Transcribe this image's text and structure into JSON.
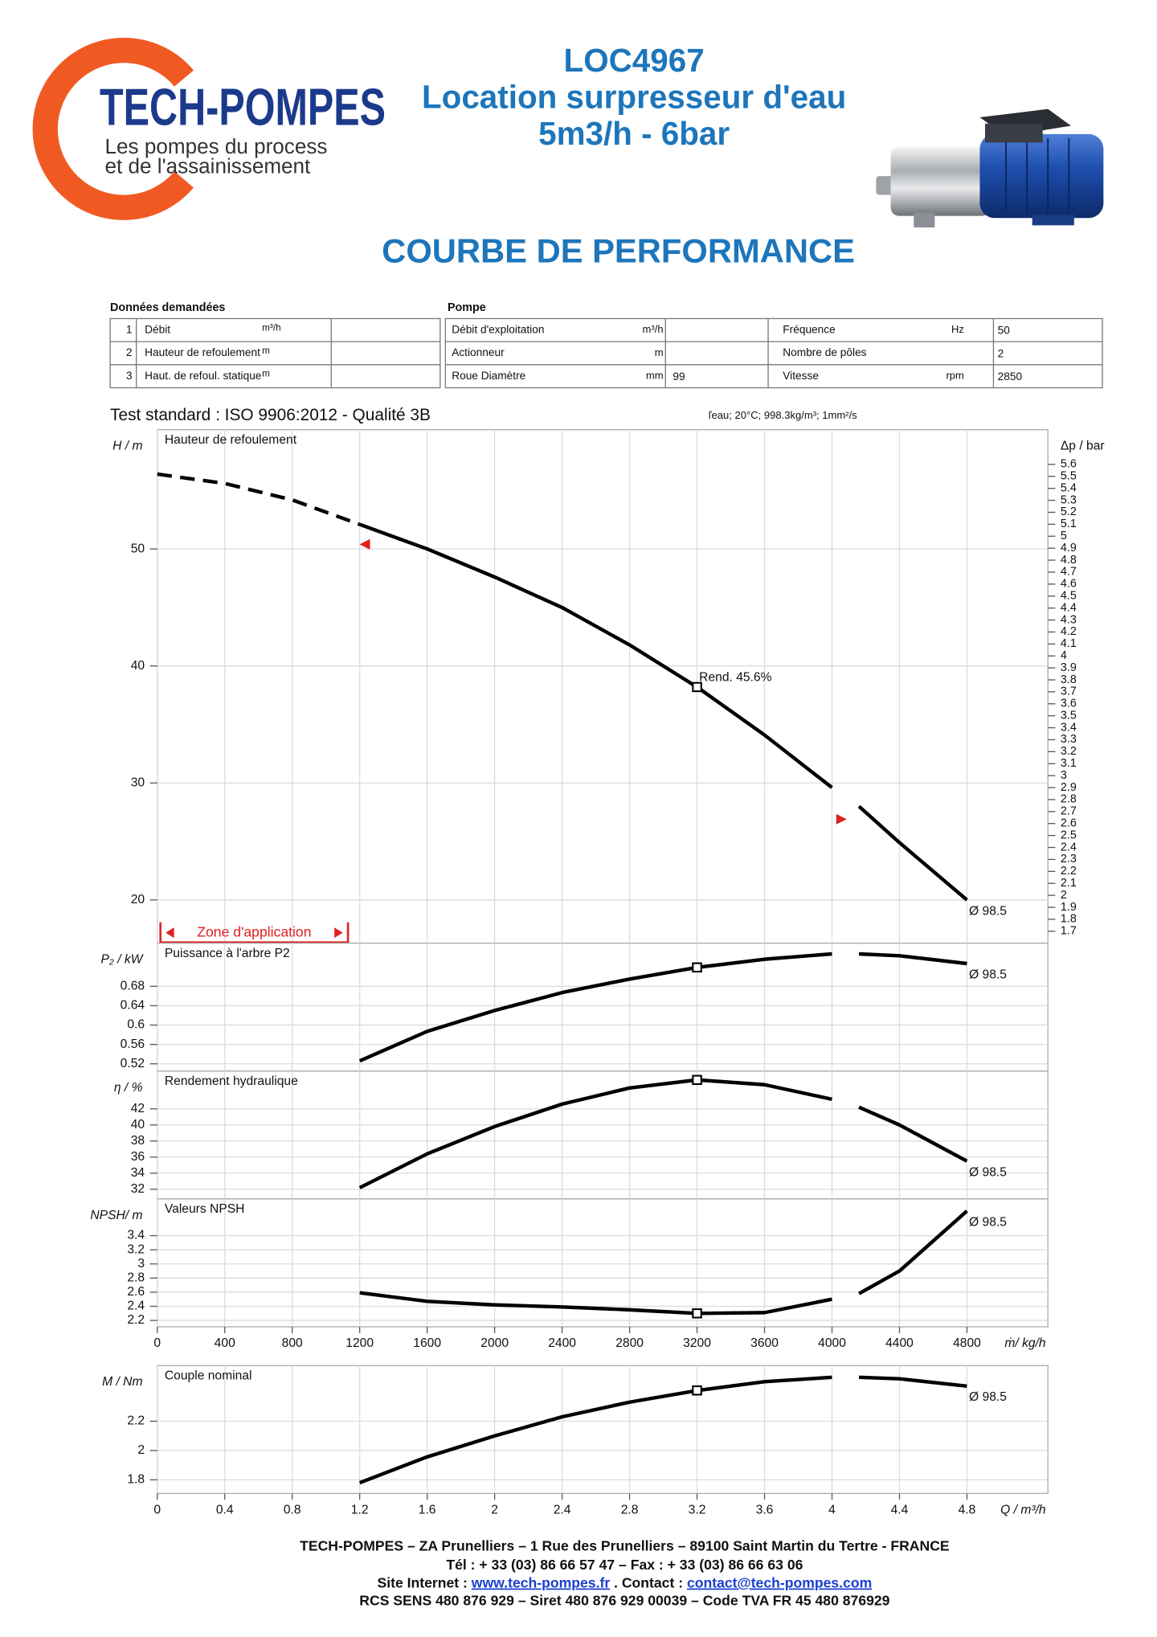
{
  "header": {
    "logo_name": "TECH-POMPES",
    "logo_tagline": [
      "Les pompes du process",
      "et de l'assainissement"
    ],
    "code": "LOC4967",
    "title": "Location surpresseur d'eau",
    "subtitle": "5m3/h - 6bar",
    "section": "COURBE DE PERFORMANCE"
  },
  "requested": {
    "title": "Données demandées",
    "rows": [
      {
        "index": 1,
        "label": "Débit",
        "unit": "m³/h"
      },
      {
        "index": 2,
        "label": "Hauteur de refoulement",
        "unit": "m"
      },
      {
        "index": 3,
        "label": "Haut. de refoul. statique",
        "unit": "m"
      }
    ]
  },
  "pump": {
    "title": "Pompe",
    "rows": [
      {
        "left": {
          "label": "Débit d'exploitation",
          "unit": "m³/h"
        },
        "right": {
          "label": "Fréquence",
          "unit": "Hz",
          "value": 50
        }
      },
      {
        "left": {
          "label": "Actionneur",
          "unit": "m"
        },
        "right": {
          "label": "Nombre de pôles",
          "value": 2
        }
      },
      {
        "left": {
          "label": "Roue Diamètre",
          "unit": "mm",
          "value": 99
        },
        "right": {
          "label": "Vitesse",
          "unit": "rpm",
          "value": 2850
        }
      }
    ]
  },
  "test_standard": "Test standard : ISO 9906:2012 - Qualité 3B",
  "fluid": "ľeau; 20°C; 998.3kg/m³; 1mm²/s",
  "chart_data": [
    {
      "type": "line",
      "title": "Hauteur de refoulement",
      "y_label": "H / m",
      "y2_label": "Δp / bar",
      "grid": true,
      "xlim": [
        0,
        5280
      ],
      "xticks": [
        0,
        400,
        800,
        1200,
        1600,
        2000,
        2400,
        2800,
        3200,
        3600,
        4000,
        4400,
        4800
      ],
      "ylim": [
        16.3,
        60.2
      ],
      "yticks": [
        20,
        30,
        40,
        50
      ],
      "y2lim": [
        1.6,
        5.89
      ],
      "y2ticks": [
        1.7,
        1.8,
        1.9,
        2,
        2.1,
        2.2,
        2.3,
        2.4,
        2.5,
        2.6,
        2.7,
        2.8,
        2.9,
        3,
        3.1,
        3.2,
        3.3,
        3.4,
        3.5,
        3.6,
        3.7,
        3.8,
        3.9,
        4,
        4.1,
        4.2,
        4.3,
        4.4,
        4.5,
        4.6,
        4.7,
        4.8,
        4.9,
        5,
        5.1,
        5.2,
        5.3,
        5.4,
        5.5,
        5.6
      ],
      "x": [
        0,
        400,
        800,
        1200,
        1600,
        2000,
        2400,
        2800,
        3200,
        3600,
        4000,
        4100,
        4160,
        4400,
        4800
      ],
      "series": [
        {
          "color": "#000000",
          "dash": true,
          "values": [
            56.4,
            55.6,
            54.2,
            52.1,
            null,
            null,
            null,
            null,
            null,
            null,
            null,
            null,
            null,
            null,
            null
          ]
        },
        {
          "color": "#000000",
          "values": [
            null,
            null,
            null,
            52.1,
            50.0,
            47.6,
            45.0,
            41.8,
            38.2,
            34.1,
            29.6,
            null,
            28.0,
            24.9,
            20.0
          ]
        }
      ],
      "operating_point": {
        "x": 3200,
        "value": 38.2,
        "label": "Rend.  45.6%"
      },
      "zone": {
        "label": "Zone d'application",
        "color": "#e02020",
        "x": [
          1230,
          4056
        ],
        "values": [
          50.4,
          26.9
        ]
      },
      "diameter_label": "Ø 98.5"
    },
    {
      "type": "line",
      "title": "Puissance à l'arbre P2",
      "y_label": "P₂ / kW",
      "grid": true,
      "xlim": [
        0,
        5280
      ],
      "xticks": [
        0,
        400,
        800,
        1200,
        1600,
        2000,
        2400,
        2800,
        3200,
        3600,
        4000,
        4400,
        4800
      ],
      "ylim": [
        0.505,
        0.769
      ],
      "yticks": [
        0.52,
        0.56,
        0.6,
        0.64,
        0.68
      ],
      "x": [
        1200,
        1600,
        2000,
        2400,
        2800,
        3200,
        3600,
        4000,
        4100,
        4160,
        4400,
        4800
      ],
      "series": [
        {
          "color": "#000000",
          "values": [
            0.526,
            0.587,
            0.63,
            0.667,
            0.695,
            0.719,
            0.736,
            0.747,
            null,
            0.747,
            0.743,
            0.727
          ]
        }
      ],
      "operating_point": {
        "x": 3200,
        "value": 0.719
      },
      "diameter_label": "Ø 98.5"
    },
    {
      "type": "line",
      "title": "Rendement hydraulique",
      "y_label": "η / %",
      "grid": true,
      "xlim": [
        0,
        5280
      ],
      "xticks": [
        0,
        400,
        800,
        1200,
        1600,
        2000,
        2400,
        2800,
        3200,
        3600,
        4000,
        4400,
        4800
      ],
      "ylim": [
        30.8,
        46.7
      ],
      "yticks": [
        32,
        34,
        36,
        38,
        40,
        42
      ],
      "x": [
        1200,
        1600,
        2000,
        2400,
        2800,
        3200,
        3600,
        4000,
        4100,
        4160,
        4400,
        4800
      ],
      "series": [
        {
          "color": "#000000",
          "values": [
            32.2,
            36.4,
            39.8,
            42.6,
            44.6,
            45.6,
            45.0,
            43.2,
            null,
            42.2,
            40.0,
            35.5
          ]
        }
      ],
      "operating_point": {
        "x": 3200,
        "value": 45.6
      },
      "diameter_label": "Ø 98.5"
    },
    {
      "type": "line",
      "title": "Valeurs NPSH",
      "y_label": "NPSH/ m",
      "x_label": "ṁ/ kg/h",
      "grid": true,
      "xlim": [
        0,
        5280
      ],
      "xticks": [
        0,
        400,
        800,
        1200,
        1600,
        2000,
        2400,
        2800,
        3200,
        3600,
        4000,
        4400,
        4800
      ],
      "ylim": [
        2.11,
        3.92
      ],
      "yticks": [
        2.2,
        2.4,
        2.6,
        2.8,
        3,
        3.2,
        3.4
      ],
      "x": [
        1200,
        1600,
        2000,
        2400,
        2800,
        3200,
        3600,
        4000,
        4100,
        4160,
        4400,
        4800
      ],
      "series": [
        {
          "color": "#000000",
          "values": [
            2.59,
            2.47,
            2.42,
            2.39,
            2.35,
            2.3,
            2.31,
            2.5,
            null,
            2.58,
            2.9,
            3.75
          ]
        }
      ],
      "operating_point": {
        "x": 3200,
        "value": 2.3
      },
      "diameter_label": "Ø 98.5"
    },
    {
      "type": "line",
      "title": "Couple nominal",
      "y_label": "M / Nm",
      "x_label": "Q / m³/h",
      "grid": true,
      "xlim": [
        0,
        5.28
      ],
      "xticks": [
        0,
        0.4,
        0.8,
        1.2,
        1.6,
        2,
        2.4,
        2.8,
        3.2,
        3.6,
        4,
        4.4,
        4.8
      ],
      "ylim": [
        1.707,
        2.58
      ],
      "yticks": [
        1.8,
        2,
        2.2
      ],
      "x": [
        1.2,
        1.6,
        2,
        2.4,
        2.8,
        3.2,
        3.6,
        4,
        4.1,
        4.16,
        4.4,
        4.8
      ],
      "series": [
        {
          "color": "#000000",
          "values": [
            1.78,
            1.957,
            2.1,
            2.23,
            2.33,
            2.41,
            2.47,
            2.5,
            null,
            2.5,
            2.49,
            2.44
          ]
        }
      ],
      "operating_point": {
        "x": 3.2,
        "value": 2.41
      },
      "diameter_label": "Ø 98.5"
    }
  ],
  "footer": {
    "address": "TECH-POMPES – ZA Prunelliers – 1 Rue des Prunelliers – 89100 Saint Martin du Tertre - FRANCE",
    "phone": "Tél : + 33 (03) 86 66 57 47 – Fax : + 33 (03) 86 66 63 06",
    "web_label": "Site Internet :",
    "web": "www.tech-pompes.fr",
    "contact_label": ". Contact :",
    "contact": "contact@tech-pompes.com",
    "registration": "RCS SENS 480 876 929 – Siret 480 876 929 00039 – Code TVA FR 45 480 876929"
  }
}
